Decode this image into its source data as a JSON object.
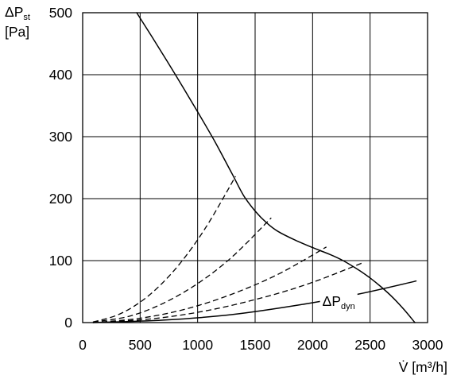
{
  "chart_data": {
    "type": "line",
    "xlabel": "V̇ [m³/h]",
    "ylabel": {
      "symbol": "ΔP",
      "subscript": "st",
      "unit": "[Pa]"
    },
    "xlim": [
      0,
      3000
    ],
    "ylim": [
      0,
      500
    ],
    "xticks": [
      0,
      500,
      1000,
      1500,
      2000,
      2500,
      3000
    ],
    "yticks": [
      0,
      100,
      200,
      300,
      400,
      500
    ],
    "grid": true,
    "series": [
      {
        "style": "solid",
        "x": [
          470,
          600,
          800,
          1000,
          1150,
          1300,
          1400,
          1500,
          1600,
          1700,
          1850,
          2000,
          2150,
          2265,
          2400,
          2500,
          2600,
          2700,
          2800,
          2890
        ],
        "y": [
          500,
          462,
          402,
          340,
          292,
          240,
          205,
          180,
          161,
          147,
          133,
          121,
          110,
          100,
          85,
          72,
          57,
          40,
          20,
          0
        ]
      },
      {
        "style": "dashed",
        "x": [
          90,
          300,
          500,
          700,
          900,
          1100,
          1330
        ],
        "y": [
          1,
          12,
          33,
          65,
          108,
          162,
          236
        ]
      },
      {
        "style": "dashed",
        "x": [
          90,
          400,
          700,
          1000,
          1300,
          1640
        ],
        "y": [
          1,
          10,
          31,
          63,
          106,
          169
        ]
      },
      {
        "style": "dashed",
        "x": [
          90,
          500,
          900,
          1300,
          1700,
          2120
        ],
        "y": [
          0,
          7,
          22,
          46,
          78,
          122
        ]
      },
      {
        "style": "dashed",
        "x": [
          90,
          600,
          1100,
          1600,
          2000,
          2430
        ],
        "y": [
          0,
          6,
          20,
          42,
          65,
          96
        ]
      },
      {
        "style": "solid",
        "x": [
          90,
          700,
          1300,
          1900,
          2400,
          2900
        ],
        "y": [
          0,
          4,
          13,
          29,
          46,
          67
        ]
      }
    ],
    "annotations": [
      {
        "text": "ΔP",
        "subscript": "dyn",
        "x": 2085,
        "y": 27
      }
    ]
  }
}
